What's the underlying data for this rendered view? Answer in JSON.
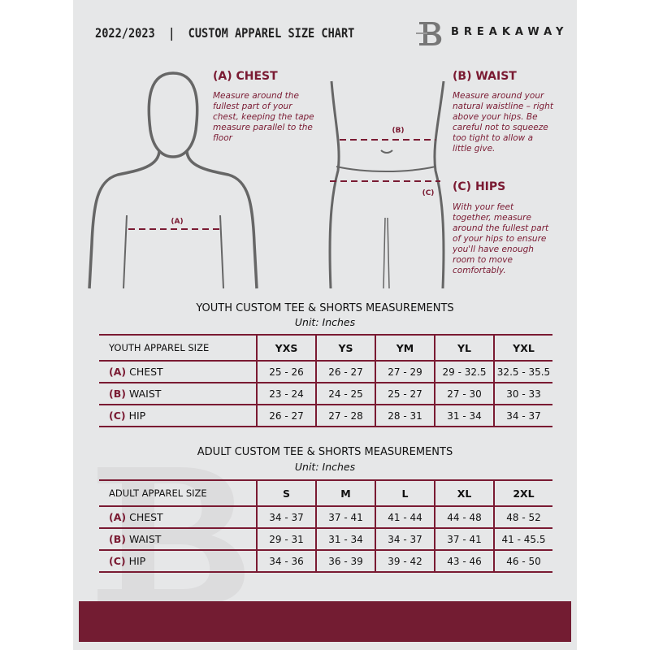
{
  "header": {
    "title": "2022/2023  |  CUSTOM APPAREL SIZE CHART",
    "brand": "BREAKAWAY",
    "logo_letter": "B"
  },
  "guide": {
    "chest": {
      "heading": "(A) CHEST",
      "text": "Measure around the fullest part of your chest, keeping the tape measure parallel to the floor",
      "marker": "(A)"
    },
    "waist": {
      "heading": "(B) WAIST",
      "text": "Measure around your natural waistline – right above your hips. Be careful not to squeeze too tight to allow a little give.",
      "marker": "(B)"
    },
    "hips": {
      "heading": "(C) HIPS",
      "text": "With your feet together, measure around the fullest part of your hips to ensure you'll have enough room to move comfortably.",
      "marker": "(C)"
    }
  },
  "youth": {
    "title": "YOUTH CUSTOM TEE & SHORTS MEASUREMENTS",
    "unit": "Unit: Inches",
    "header": "YOUTH APPAREL SIZE",
    "sizes": [
      "YXS",
      "YS",
      "YM",
      "YL",
      "YXL"
    ],
    "rows": [
      {
        "letter": "(A)",
        "label": "CHEST",
        "values": [
          "25 - 26",
          "26 - 27",
          "27 - 29",
          "29 - 32.5",
          "32.5 - 35.5"
        ]
      },
      {
        "letter": "(B)",
        "label": "WAIST",
        "values": [
          "23 - 24",
          "24 - 25",
          "25 - 27",
          "27 - 30",
          "30 - 33"
        ]
      },
      {
        "letter": "(C)",
        "label": "HIP",
        "values": [
          "26 - 27",
          "27 - 28",
          "28 - 31",
          "31 - 34",
          "34 - 37"
        ]
      }
    ]
  },
  "adult": {
    "title": "ADULT CUSTOM TEE & SHORTS MEASUREMENTS",
    "unit": "Unit: Inches",
    "header": "ADULT APPAREL SIZE",
    "sizes": [
      "S",
      "M",
      "L",
      "XL",
      "2XL"
    ],
    "rows": [
      {
        "letter": "(A)",
        "label": "CHEST",
        "values": [
          "34 - 37",
          "37 - 41",
          "41 - 44",
          "44 - 48",
          "48 - 52"
        ]
      },
      {
        "letter": "(B)",
        "label": "WAIST",
        "values": [
          "29 - 31",
          "31 - 34",
          "34 - 37",
          "37 - 41",
          "41 - 45.5"
        ]
      },
      {
        "letter": "(C)",
        "label": "HIP",
        "values": [
          "34 - 36",
          "36 - 39",
          "39 - 42",
          "43 - 46",
          "46 - 50"
        ]
      }
    ]
  },
  "colors": {
    "accent": "#7a1a32",
    "band": "#731c32",
    "background": "#e6e7e8"
  }
}
